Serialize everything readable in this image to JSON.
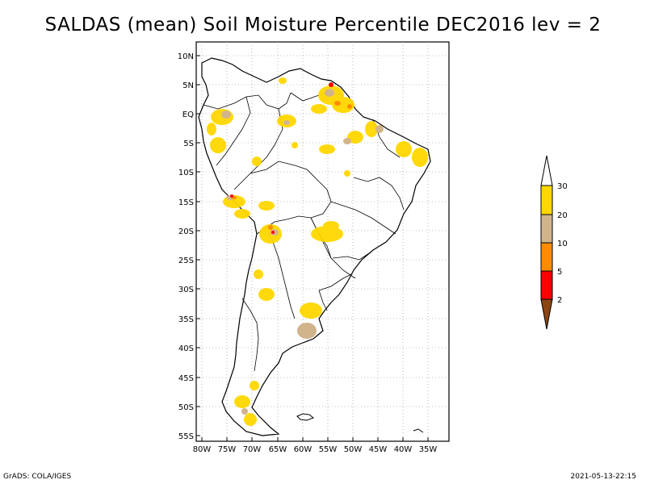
{
  "title": "SALDAS (mean) Soil Moisture Percentile DEC2016 lev = 2",
  "lat_labels": [
    "10N",
    "5N",
    "EQ",
    "5S",
    "10S",
    "15S",
    "20S",
    "25S",
    "30S",
    "35S",
    "40S",
    "45S",
    "50S",
    "55S"
  ],
  "lon_labels": [
    "80W",
    "75W",
    "70W",
    "65W",
    "60W",
    "55W",
    "50W",
    "45W",
    "40W",
    "35W"
  ],
  "legend": {
    "labels": [
      "30",
      "20",
      "10",
      "5",
      "2"
    ],
    "colors": {
      "top": "#ffffff",
      "band_20_30": "#ffd700",
      "band_10_20": "#d2b48c",
      "band_5_10": "#ff8c00",
      "band_2_5": "#ff0000",
      "bottom": "#8b4513"
    }
  },
  "footer": {
    "left": "GrADS: COLA/IGES",
    "right": "2021-05-13-22:15"
  }
}
